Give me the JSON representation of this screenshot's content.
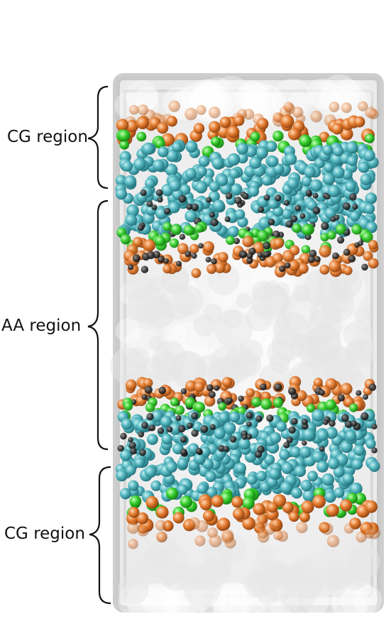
{
  "labels": {
    "cg_top": "CG region",
    "aa": "AA region",
    "cg_bottom": "CG region"
  },
  "colors": {
    "box": "#b9b9b9",
    "water": "#dcdcdc",
    "tail": "#4bb3bd",
    "glycerol": "#3fd23a",
    "headgroup": "#e07a2e",
    "carbon": "#2b2b2b"
  }
}
